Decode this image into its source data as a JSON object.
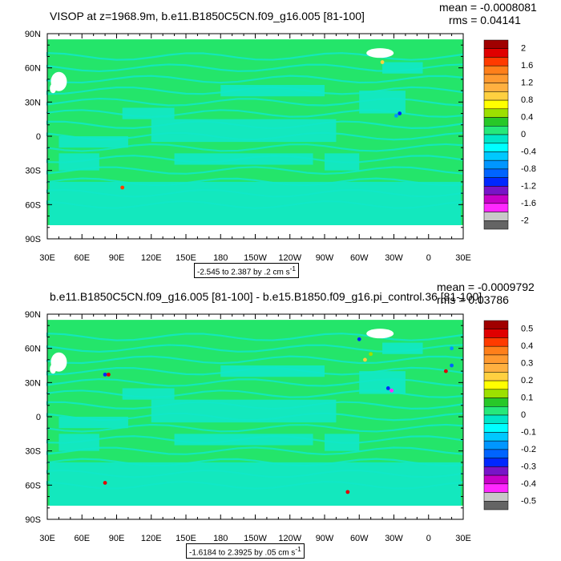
{
  "chart_data": [
    {
      "type": "heatmap",
      "title": "VISOP at z=1968.9m, b.e11.B1850C5CN.f09_g16.005 [81-100]",
      "stats": {
        "mean": "mean = -0.0008081",
        "rms": "rms = 0.04141"
      },
      "range_label": "-2.545 to 2.387 by .2 cm s",
      "range_sup": "-1",
      "x_ticks": [
        "30E",
        "60E",
        "90E",
        "120E",
        "150E",
        "180",
        "150W",
        "120W",
        "90W",
        "60W",
        "30W",
        "0",
        "30E"
      ],
      "y_ticks": [
        "90N",
        "60N",
        "30N",
        "0",
        "30S",
        "60S",
        "90S"
      ],
      "colorbar": {
        "labels": [
          "2",
          "1.6",
          "1.2",
          "0.8",
          "0.4",
          "0",
          "-0.4",
          "-0.8",
          "-1.2",
          "-1.6",
          "-2"
        ],
        "colors": [
          "#a00000",
          "#e00000",
          "#ff3b00",
          "#ff7f1a",
          "#ff9a30",
          "#ffb040",
          "#ffd040",
          "#ffff00",
          "#9de000",
          "#28c828",
          "#26e87a",
          "#00e6c8",
          "#00ffff",
          "#00c8ff",
          "#0096ff",
          "#0064ff",
          "#0028ff",
          "#7814c8",
          "#c800c8",
          "#ff28ff",
          "#c8c8c8",
          "#646464"
        ]
      },
      "lat_range": [
        -90,
        90
      ],
      "lon_range": [
        30,
        390
      ]
    },
    {
      "type": "heatmap",
      "title": "b.e11.B1850C5CN.f09_g16.005 [81-100] - b.e15.B1850.f09_g16.pi_control.36 [81-100]",
      "stats": {
        "mean": "mean = -0.0009792",
        "rms": "rms = 0.03786"
      },
      "range_label": "-1.6184 to 2.3925 by .05 cm s",
      "range_sup": "-1",
      "x_ticks": [
        "30E",
        "60E",
        "90E",
        "120E",
        "150E",
        "180",
        "150W",
        "120W",
        "90W",
        "60W",
        "30W",
        "0",
        "30E"
      ],
      "y_ticks": [
        "90N",
        "60N",
        "30N",
        "0",
        "30S",
        "60S",
        "90S"
      ],
      "colorbar": {
        "labels": [
          "0.5",
          "0.4",
          "0.3",
          "0.2",
          "0.1",
          "0",
          "-0.1",
          "-0.2",
          "-0.3",
          "-0.4",
          "-0.5"
        ],
        "colors": [
          "#a00000",
          "#e00000",
          "#ff3b00",
          "#ff7f1a",
          "#ff9a30",
          "#ffb040",
          "#ffd040",
          "#ffff00",
          "#9de000",
          "#28c828",
          "#26e87a",
          "#00e6c8",
          "#00ffff",
          "#00c8ff",
          "#0096ff",
          "#0064ff",
          "#0028ff",
          "#7814c8",
          "#c800c8",
          "#ff28ff",
          "#c8c8c8",
          "#646464"
        ]
      },
      "lat_range": [
        -90,
        90
      ],
      "lon_range": [
        30,
        390
      ]
    }
  ],
  "colors": {
    "field_main": "#24e56a",
    "field_alt": "#12e8c8",
    "land_missing": "#ffffff"
  }
}
